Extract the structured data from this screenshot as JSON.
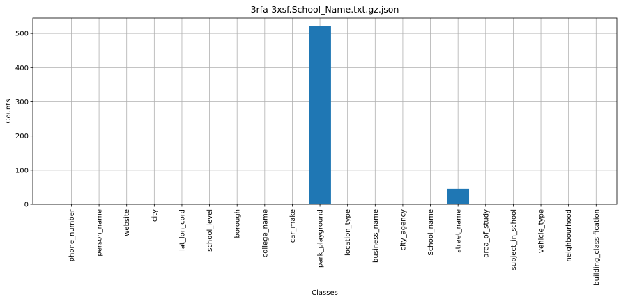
{
  "chart_data": {
    "type": "bar",
    "title": "3rfa-3xsf.School_Name.txt.gz.json",
    "xlabel": "Classes",
    "ylabel": "Counts",
    "categories": [
      "phone_number",
      "person_name",
      "website",
      "city",
      "lat_lon_cord",
      "school_level",
      "borough",
      "college_name",
      "car_make",
      "park_playground",
      "location_type",
      "business_name",
      "city_agency",
      "School_name",
      "street_name",
      "area_of_study",
      "subject_in_school",
      "vehicle_type",
      "neighbourhood",
      "building_classification"
    ],
    "values": [
      0,
      0,
      0,
      0,
      0,
      0,
      0,
      0,
      0,
      521,
      0,
      0,
      0,
      0,
      45,
      0,
      0,
      0,
      0,
      0
    ],
    "ylim": [
      0,
      545
    ],
    "yticks": [
      0,
      100,
      200,
      300,
      400,
      500
    ],
    "grid": true,
    "bar_color": "#1f77b4"
  }
}
